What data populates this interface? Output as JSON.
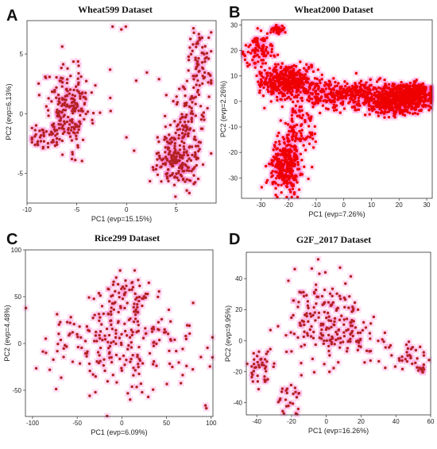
{
  "chart_data": [
    {
      "type": "scatter",
      "panel": "A",
      "title": "Wheat599 Dataset",
      "xlabel": "PC1 (evp=15.15%)",
      "ylabel": "PC2 (evp=6.13%)",
      "xlim": [
        -10,
        9
      ],
      "ylim": [
        -7.5,
        7.8
      ],
      "xticks": [
        -10,
        -5,
        0,
        5
      ],
      "yticks": [
        -5,
        0,
        5
      ],
      "point_color": "#b22222",
      "halo_color": "#ff66cc",
      "clusters": [
        {
          "cx": -5.8,
          "cy": 0.5,
          "sx": 1.2,
          "sy": 1.7,
          "n": 190
        },
        {
          "cx": -8.0,
          "cy": -1.8,
          "sx": 1.0,
          "sy": 0.6,
          "n": 45
        },
        {
          "cx": 5.0,
          "cy": -4.0,
          "sx": 1.1,
          "sy": 1.0,
          "n": 170
        },
        {
          "cx": 6.0,
          "cy": -0.8,
          "sx": 0.9,
          "sy": 1.6,
          "n": 100
        },
        {
          "cx": 7.3,
          "cy": 4.0,
          "sx": 0.8,
          "sy": 1.6,
          "n": 75
        },
        {
          "cx": -1.5,
          "cy": 1.5,
          "sx": 2.8,
          "sy": 3.5,
          "n": 19
        }
      ]
    },
    {
      "type": "scatter",
      "panel": "B",
      "title": "Wheat2000 Dataset",
      "xlabel": "PC1 (evp=7.26%)",
      "ylabel": "PC2 (evp=2.26%)",
      "xlim": [
        -37,
        32
      ],
      "ylim": [
        -38,
        32
      ],
      "xticks": [
        -30,
        -20,
        -10,
        0,
        10,
        20,
        30
      ],
      "yticks": [
        -30,
        -20,
        -10,
        0,
        10,
        20,
        30
      ],
      "point_color": "#ee0000",
      "halo_color": "#ff66cc",
      "clusters": [
        {
          "cx": 20.0,
          "cy": 1.0,
          "sx": 6.0,
          "sy": 2.8,
          "n": 700
        },
        {
          "cx": -20.0,
          "cy": 8.0,
          "sx": 5.5,
          "sy": 3.0,
          "n": 420
        },
        {
          "cx": 0.0,
          "cy": 2.5,
          "sx": 9.0,
          "sy": 3.0,
          "n": 330
        },
        {
          "cx": -21.0,
          "cy": -25.0,
          "sx": 3.0,
          "sy": 5.5,
          "n": 300
        },
        {
          "cx": -31.0,
          "cy": 20.0,
          "sx": 2.5,
          "sy": 3.5,
          "n": 90
        },
        {
          "cx": -24.0,
          "cy": 28.0,
          "sx": 1.0,
          "sy": 0.8,
          "n": 40
        },
        {
          "cx": -16.0,
          "cy": -10.0,
          "sx": 3.0,
          "sy": 4.0,
          "n": 80
        },
        {
          "cx": 27.0,
          "cy": 4.0,
          "sx": 2.0,
          "sy": 1.5,
          "n": 120
        }
      ]
    },
    {
      "type": "scatter",
      "panel": "C",
      "title": "Rice299 Dataset",
      "xlabel": "PC1 (evp=6.09%)",
      "ylabel": "PC2 (evp=4.48%)",
      "xlim": [
        -108,
        102
      ],
      "ylim": [
        -78,
        100
      ],
      "xticks": [
        -100,
        -50,
        0,
        50,
        100
      ],
      "yticks": [
        -50,
        0,
        50,
        100
      ],
      "point_color": "#b22222",
      "halo_color": "#ff66cc",
      "clusters": [
        {
          "cx": 0.0,
          "cy": 0.0,
          "sx": 38.0,
          "sy": 28.0,
          "n": 230
        },
        {
          "cx": 5.0,
          "cy": 55.0,
          "sx": 12.0,
          "sy": 14.0,
          "n": 50
        },
        {
          "cx": 95.0,
          "cy": -68.0,
          "sx": 2.0,
          "sy": 2.0,
          "n": 2
        }
      ]
    },
    {
      "type": "scatter",
      "panel": "D",
      "title": "G2F_2017 Dataset",
      "xlabel": "PC1 (evp=16.26%)",
      "ylabel": "PC2 (evp=9.95%)",
      "xlim": [
        -46,
        60
      ],
      "ylim": [
        -48,
        57
      ],
      "xticks": [
        -40,
        -20,
        0,
        20,
        40,
        60
      ],
      "yticks": [
        -40,
        -20,
        0,
        20,
        40
      ],
      "point_color": "#b22222",
      "halo_color": "#ff66cc",
      "clusters": [
        {
          "cx": 0.0,
          "cy": 15.0,
          "sx": 11.0,
          "sy": 14.0,
          "n": 170
        },
        {
          "cx": 20.0,
          "cy": 0.0,
          "sx": 9.0,
          "sy": 9.0,
          "n": 40
        },
        {
          "cx": -38.0,
          "cy": -16.0,
          "sx": 3.5,
          "sy": 6.0,
          "n": 40
        },
        {
          "cx": -22.0,
          "cy": -38.0,
          "sx": 3.5,
          "sy": 5.0,
          "n": 25
        },
        {
          "cx": 47.0,
          "cy": -10.0,
          "sx": 5.0,
          "sy": 5.0,
          "n": 30
        },
        {
          "cx": 55.0,
          "cy": -19.0,
          "sx": 1.0,
          "sy": 1.5,
          "n": 10
        }
      ]
    }
  ]
}
